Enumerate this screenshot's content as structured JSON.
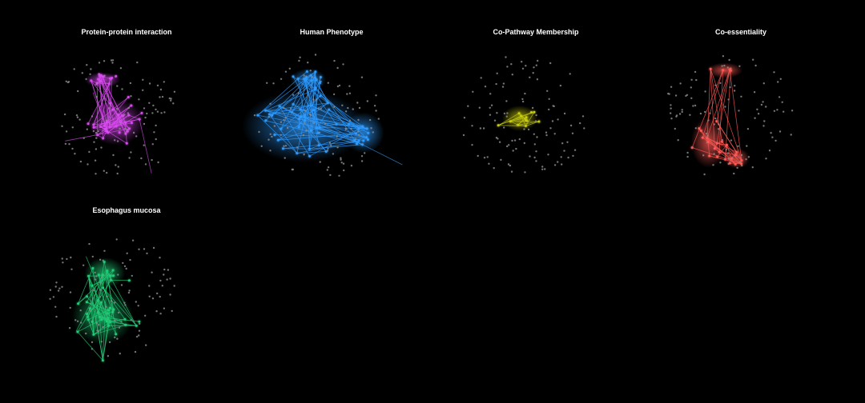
{
  "panels": [
    {
      "title": "Protein-protein interaction",
      "color": "#d94cf0",
      "layout_variant": "two-cluster"
    },
    {
      "title": "Human Phenotype",
      "color": "#2f9bff",
      "layout_variant": "spread"
    },
    {
      "title": "Co-Pathway Membership",
      "color": "#c8cc10",
      "layout_variant": "single-cluster"
    },
    {
      "title": "Co-essentiality",
      "color": "#ff5a55",
      "layout_variant": "streak"
    },
    {
      "title": "Esophagus mucosa",
      "color": "#22cc77",
      "layout_variant": "dense"
    }
  ],
  "background_node_color": "#8a8a8a"
}
